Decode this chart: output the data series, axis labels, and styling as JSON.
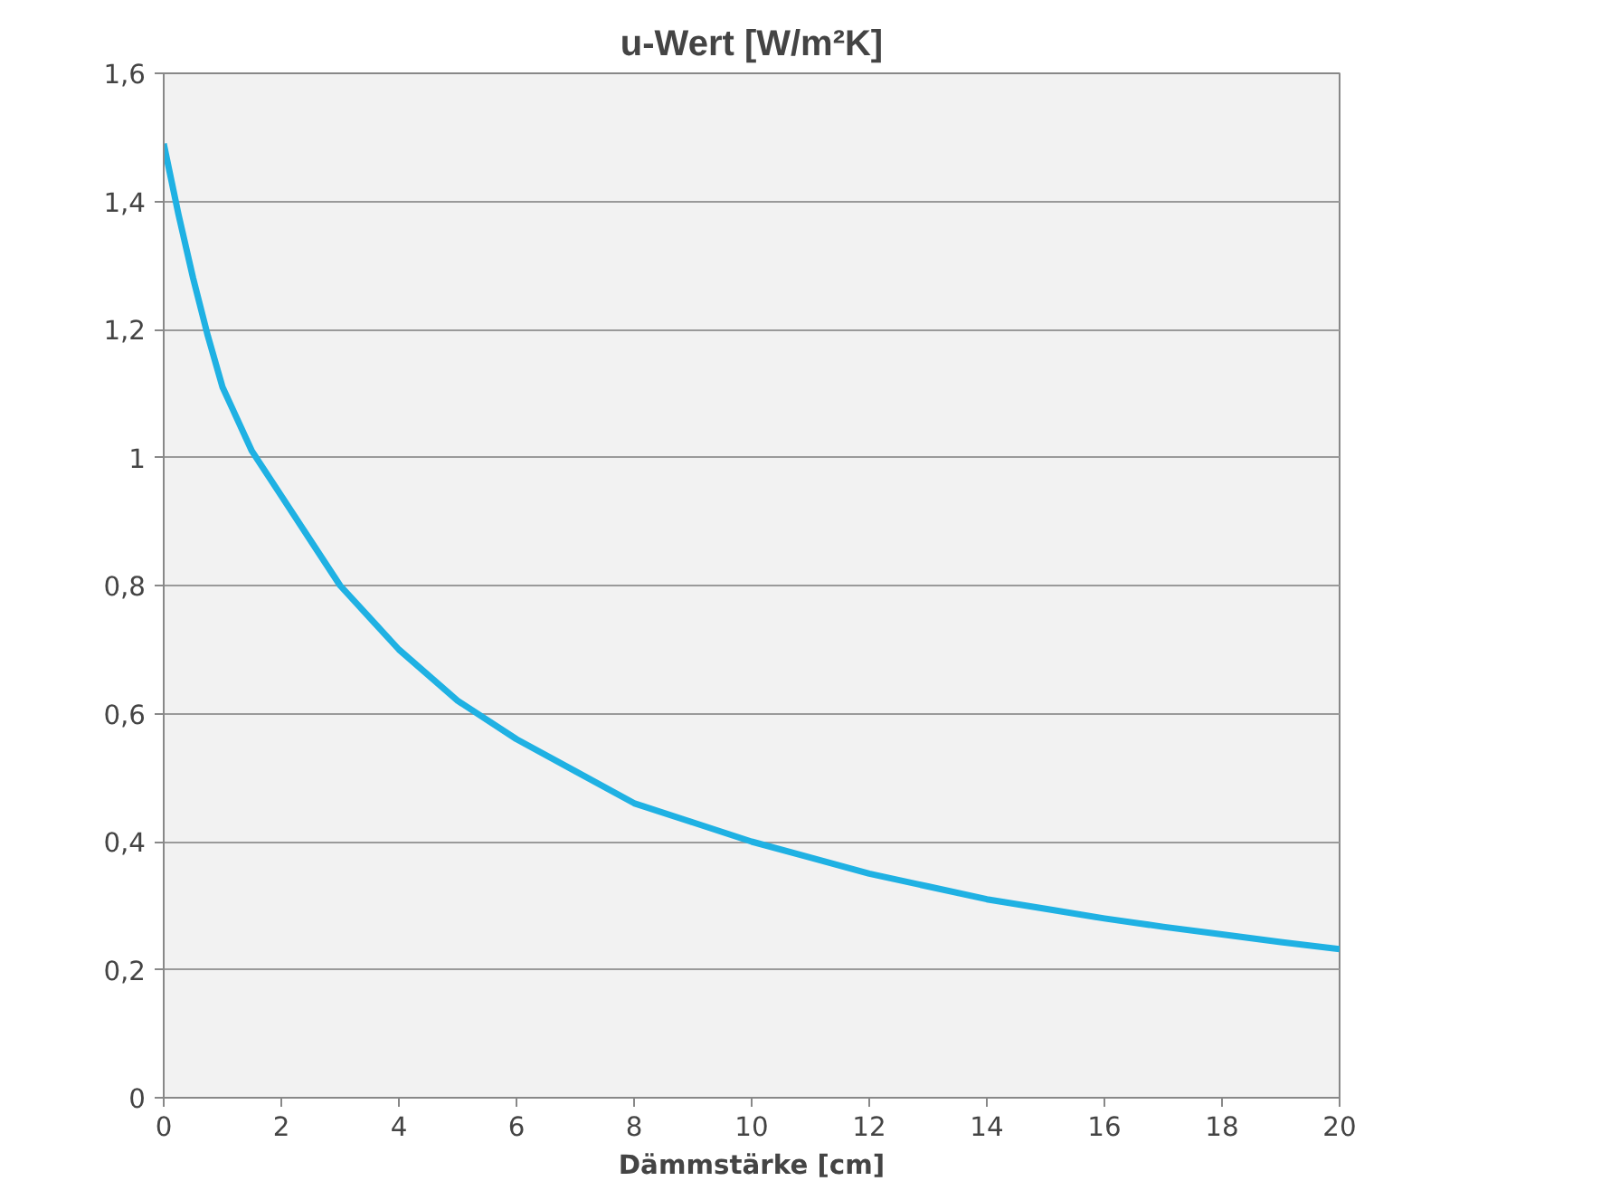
{
  "chart_data": {
    "type": "line",
    "title": "u-Wert [W/m²K]",
    "xlabel": "Dämmstärke [cm]",
    "x": [
      0,
      0.25,
      0.5,
      0.75,
      1,
      1.5,
      2,
      2.5,
      3,
      3.5,
      4,
      5,
      6,
      7,
      8,
      9,
      10,
      11,
      12,
      13,
      14,
      15,
      16,
      17,
      18,
      19,
      20
    ],
    "series": [
      {
        "color": "#1fb1e3",
        "values": [
          1.49,
          1.38,
          1.28,
          1.19,
          1.11,
          1.01,
          0.94,
          0.87,
          0.8,
          0.75,
          0.7,
          0.62,
          0.56,
          0.51,
          0.46,
          0.43,
          0.4,
          0.375,
          0.35,
          0.33,
          0.31,
          0.295,
          0.28,
          0.267,
          0.255,
          0.243,
          0.232
        ]
      }
    ],
    "xlim": [
      0,
      20
    ],
    "xticks": [
      0,
      2,
      4,
      6,
      8,
      10,
      12,
      14,
      16,
      18,
      20
    ],
    "ylim": [
      0,
      1.6
    ],
    "yticks": [
      0,
      {
        "value": 0.2,
        "label": "0,2"
      },
      {
        "value": 0.4,
        "label": "0,4"
      },
      {
        "value": 0.6,
        "label": "0,6"
      },
      {
        "value": 0.8,
        "label": "0,8"
      },
      1,
      {
        "value": 1.2,
        "label": "1,2"
      },
      {
        "value": 1.4,
        "label": "1,4"
      },
      {
        "value": 1.6,
        "label": "1,6"
      }
    ],
    "grid": "y",
    "marker": "none",
    "line_style": "solid"
  }
}
